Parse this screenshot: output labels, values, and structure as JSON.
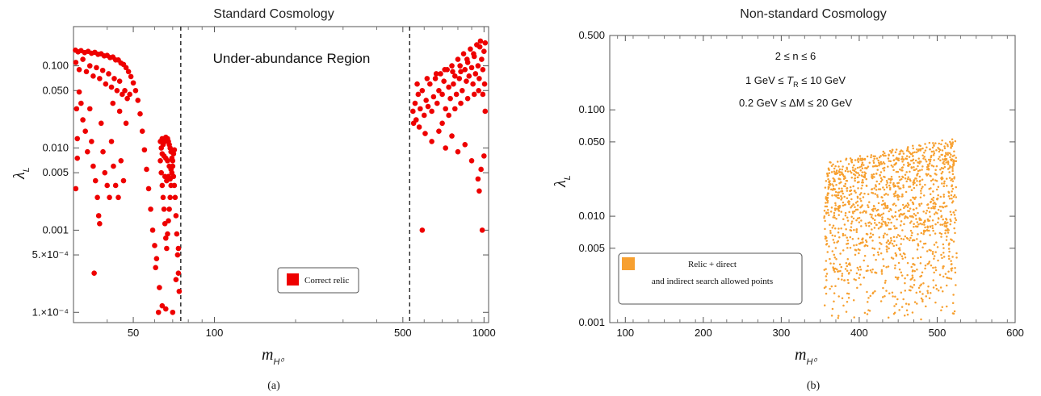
{
  "chart_data": [
    {
      "type": "scatter",
      "title": "Standard Cosmology",
      "xlabel": "m",
      "xlabel_sub": "H⁰",
      "ylabel": "λ",
      "ylabel_sub": "L",
      "xscale": "log",
      "yscale": "log",
      "xlim": [
        30,
        1040
      ],
      "ylim": [
        7.5e-05,
        0.3
      ],
      "xticks": [
        {
          "v": 50,
          "label": "50"
        },
        {
          "v": 100,
          "label": "100"
        },
        {
          "v": 500,
          "label": "500"
        },
        {
          "v": 1000,
          "label": "1000"
        }
      ],
      "yticks": [
        {
          "v": 0.1,
          "label": "0.100"
        },
        {
          "v": 0.05,
          "label": "0.050"
        },
        {
          "v": 0.01,
          "label": "0.010"
        },
        {
          "v": 0.005,
          "label": "0.005"
        },
        {
          "v": 0.001,
          "label": "0.001"
        },
        {
          "v": 0.0005,
          "label": "5.×10⁻⁴"
        },
        {
          "v": 0.0001,
          "label": "1.×10⁻⁴"
        }
      ],
      "vlines": [
        75,
        530
      ],
      "annotation": "Under-abundance Region",
      "legend": {
        "label": "Correct relic",
        "color": "#ee0000",
        "position": "bottom-center"
      },
      "caption": "(a)",
      "series": [
        {
          "name": "Correct relic",
          "color": "#ee0000",
          "points": [
            [
              30.5,
              0.155
            ],
            [
              31.2,
              0.148
            ],
            [
              32.0,
              0.153
            ],
            [
              33.0,
              0.145
            ],
            [
              34.0,
              0.15
            ],
            [
              35.0,
              0.142
            ],
            [
              36.0,
              0.146
            ],
            [
              37.0,
              0.138
            ],
            [
              38.0,
              0.14
            ],
            [
              39.0,
              0.132
            ],
            [
              40.0,
              0.134
            ],
            [
              41.0,
              0.126
            ],
            [
              42.0,
              0.128
            ],
            [
              43.0,
              0.118
            ],
            [
              44.0,
              0.118
            ],
            [
              45.0,
              0.108
            ],
            [
              46.0,
              0.104
            ],
            [
              47.0,
              0.095
            ],
            [
              48.0,
              0.085
            ],
            [
              49.0,
              0.074
            ],
            [
              50.0,
              0.062
            ],
            [
              51.0,
              0.05
            ],
            [
              52.0,
              0.038
            ],
            [
              53.0,
              0.026
            ],
            [
              54.0,
              0.016
            ],
            [
              55.0,
              0.0095
            ],
            [
              56.0,
              0.0055
            ],
            [
              57.0,
              0.0032
            ],
            [
              58.0,
              0.0018
            ],
            [
              59.0,
              0.001
            ],
            [
              60.0,
              0.00065
            ],
            [
              61.0,
              0.00045
            ],
            [
              30.6,
              0.11
            ],
            [
              31.5,
              0.09
            ],
            [
              32.5,
              0.12
            ],
            [
              33.5,
              0.085
            ],
            [
              34.5,
              0.1
            ],
            [
              35.5,
              0.075
            ],
            [
              36.5,
              0.095
            ],
            [
              37.5,
              0.07
            ],
            [
              38.5,
              0.088
            ],
            [
              39.5,
              0.06
            ],
            [
              40.5,
              0.08
            ],
            [
              41.5,
              0.055
            ],
            [
              42.5,
              0.07
            ],
            [
              43.5,
              0.05
            ],
            [
              44.5,
              0.065
            ],
            [
              45.5,
              0.045
            ],
            [
              46.5,
              0.05
            ],
            [
              47.5,
              0.04
            ],
            [
              48.5,
              0.045
            ],
            [
              30.8,
              0.03
            ],
            [
              31.0,
              0.013
            ],
            [
              31.0,
              0.0075
            ],
            [
              30.6,
              0.0032
            ],
            [
              31.5,
              0.048
            ],
            [
              32.0,
              0.035
            ],
            [
              32.5,
              0.022
            ],
            [
              33.2,
              0.016
            ],
            [
              33.8,
              0.009
            ],
            [
              34.5,
              0.03
            ],
            [
              35.0,
              0.012
            ],
            [
              35.5,
              0.006
            ],
            [
              36.2,
              0.004
            ],
            [
              36.8,
              0.0025
            ],
            [
              37.2,
              0.0015
            ],
            [
              37.5,
              0.0012
            ],
            [
              38.0,
              0.02
            ],
            [
              38.6,
              0.009
            ],
            [
              39.2,
              0.005
            ],
            [
              40.0,
              0.0035
            ],
            [
              40.8,
              0.0025
            ],
            [
              41.5,
              0.012
            ],
            [
              42.2,
              0.006
            ],
            [
              43.0,
              0.0035
            ],
            [
              44.0,
              0.0025
            ],
            [
              45.0,
              0.007
            ],
            [
              46.0,
              0.004
            ],
            [
              35.8,
              0.0003
            ],
            [
              42.0,
              0.035
            ],
            [
              44.5,
              0.028
            ],
            [
              47.0,
              0.02
            ],
            [
              63.0,
              0.012
            ],
            [
              63.5,
              0.01
            ],
            [
              64.0,
              0.013
            ],
            [
              64.5,
              0.011
            ],
            [
              65.0,
              0.0125
            ],
            [
              65.5,
              0.012
            ],
            [
              66.0,
              0.0135
            ],
            [
              66.5,
              0.0125
            ],
            [
              67.0,
              0.013
            ],
            [
              67.5,
              0.012
            ],
            [
              68.0,
              0.011
            ],
            [
              68.5,
              0.01
            ],
            [
              69.0,
              0.009
            ],
            [
              69.5,
              0.0075
            ],
            [
              70.0,
              0.006
            ],
            [
              70.5,
              0.0045
            ],
            [
              71.0,
              0.0035
            ],
            [
              71.5,
              0.0025
            ],
            [
              72.0,
              0.0015
            ],
            [
              72.5,
              0.0009
            ],
            [
              73.0,
              0.0005
            ],
            [
              73.5,
              0.0003
            ],
            [
              74.0,
              0.00018
            ],
            [
              63.0,
              0.007
            ],
            [
              63.5,
              0.005
            ],
            [
              64.0,
              0.0035
            ],
            [
              64.5,
              0.0025
            ],
            [
              65.0,
              0.0018
            ],
            [
              65.5,
              0.0012
            ],
            [
              66.0,
              0.0008
            ],
            [
              66.5,
              0.0006
            ],
            [
              67.0,
              0.0009
            ],
            [
              67.5,
              0.0013
            ],
            [
              68.0,
              0.0018
            ],
            [
              68.5,
              0.0025
            ],
            [
              69.0,
              0.0035
            ],
            [
              69.5,
              0.005
            ],
            [
              70.0,
              0.007
            ],
            [
              70.5,
              0.0085
            ],
            [
              71.0,
              0.0095
            ],
            [
              64.0,
              0.0085
            ],
            [
              65.0,
              0.008
            ],
            [
              66.0,
              0.0075
            ],
            [
              67.0,
              0.007
            ],
            [
              68.0,
              0.006
            ],
            [
              69.0,
              0.0055
            ],
            [
              66.5,
              0.004
            ],
            [
              67.5,
              0.0045
            ],
            [
              68.5,
              0.0042
            ],
            [
              65.5,
              0.0045
            ],
            [
              62.0,
              0.0001
            ],
            [
              64.0,
              0.00012
            ],
            [
              66.0,
              0.00011
            ],
            [
              70.0,
              0.0001
            ],
            [
              72.0,
              0.00025
            ],
            [
              73.5,
              0.0006
            ],
            [
              60.5,
              0.00035
            ],
            [
              62.5,
              0.0002
            ],
            [
              545,
              0.028
            ],
            [
              555,
              0.035
            ],
            [
              560,
              0.022
            ],
            [
              570,
              0.045
            ],
            [
              580,
              0.03
            ],
            [
              590,
              0.05
            ],
            [
              600,
              0.025
            ],
            [
              610,
              0.038
            ],
            [
              620,
              0.032
            ],
            [
              630,
              0.06
            ],
            [
              640,
              0.028
            ],
            [
              650,
              0.042
            ],
            [
              660,
              0.07
            ],
            [
              670,
              0.035
            ],
            [
              680,
              0.05
            ],
            [
              690,
              0.08
            ],
            [
              700,
              0.045
            ],
            [
              710,
              0.065
            ],
            [
              720,
              0.03
            ],
            [
              730,
              0.09
            ],
            [
              740,
              0.055
            ],
            [
              750,
              0.04
            ],
            [
              760,
              0.1
            ],
            [
              770,
              0.06
            ],
            [
              780,
              0.075
            ],
            [
              790,
              0.045
            ],
            [
              800,
              0.12
            ],
            [
              810,
              0.07
            ],
            [
              820,
              0.085
            ],
            [
              830,
              0.05
            ],
            [
              840,
              0.14
            ],
            [
              850,
              0.09
            ],
            [
              860,
              0.065
            ],
            [
              870,
              0.11
            ],
            [
              880,
              0.075
            ],
            [
              890,
              0.16
            ],
            [
              900,
              0.095
            ],
            [
              910,
              0.06
            ],
            [
              920,
              0.13
            ],
            [
              930,
              0.08
            ],
            [
              940,
              0.18
            ],
            [
              950,
              0.1
            ],
            [
              960,
              0.07
            ],
            [
              970,
              0.2
            ],
            [
              980,
              0.12
            ],
            [
              990,
              0.09
            ],
            [
              1000,
              0.15
            ],
            [
              548,
              0.02
            ],
            [
              575,
              0.018
            ],
            [
              605,
              0.015
            ],
            [
              640,
              0.012
            ],
            [
              680,
              0.016
            ],
            [
              720,
              0.01
            ],
            [
              760,
              0.014
            ],
            [
              800,
              0.009
            ],
            [
              850,
              0.011
            ],
            [
              900,
              0.007
            ],
            [
              950,
              0.0042
            ],
            [
              960,
              0.003
            ],
            [
              975,
              0.0055
            ],
            [
              1000,
              0.008
            ],
            [
              1010,
              0.028
            ],
            [
              990,
              0.045
            ],
            [
              1005,
              0.06
            ],
            [
              590,
              0.001
            ],
            [
              985,
              0.001
            ],
            [
              700,
              0.02
            ],
            [
              740,
              0.025
            ],
            [
              780,
              0.03
            ],
            [
              820,
              0.035
            ],
            [
              870,
              0.04
            ],
            [
              920,
              0.045
            ],
            [
              955,
              0.05
            ],
            [
              565,
              0.06
            ],
            [
              615,
              0.07
            ],
            [
              665,
              0.08
            ],
            [
              715,
              0.09
            ],
            [
              765,
              0.085
            ],
            [
              815,
              0.1
            ],
            [
              865,
              0.12
            ],
            [
              915,
              0.14
            ],
            [
              965,
              0.17
            ],
            [
              1010,
              0.19
            ]
          ]
        }
      ]
    },
    {
      "type": "scatter",
      "title": "Non-standard Cosmology",
      "xlabel": "m",
      "xlabel_sub": "H⁰",
      "ylabel": "λ",
      "ylabel_sub": "L",
      "xscale": "linear",
      "yscale": "log",
      "xlim": [
        80,
        600
      ],
      "ylim": [
        0.001,
        0.5
      ],
      "xticks": [
        {
          "v": 100,
          "label": "100"
        },
        {
          "v": 200,
          "label": "200"
        },
        {
          "v": 300,
          "label": "300"
        },
        {
          "v": 400,
          "label": "400"
        },
        {
          "v": 500,
          "label": "500"
        },
        {
          "v": 600,
          "label": "600"
        }
      ],
      "yticks": [
        {
          "v": 0.5,
          "label": "0.500"
        },
        {
          "v": 0.1,
          "label": "0.100"
        },
        {
          "v": 0.05,
          "label": "0.050"
        },
        {
          "v": 0.01,
          "label": "0.010"
        },
        {
          "v": 0.005,
          "label": "0.005"
        },
        {
          "v": 0.001,
          "label": "0.001"
        }
      ],
      "annotations": [
        "2 ≤ n ≤ 6",
        "1 GeV ≤ T",
        "0.2 GeV ≤ ΔM ≤ 20 GeV"
      ],
      "annotation_tr": {
        "pre": "1 GeV ≤ ",
        "var": "T",
        "sub": "R",
        "post": " ≤ 10 GeV"
      },
      "legend": {
        "line1": "Relic + direct",
        "line2": "and indirect search allowed points",
        "color": "#f7a030",
        "position": "bottom-left"
      },
      "caption": "(b)",
      "region": {
        "xmin": 355,
        "xmax": 525,
        "ymin": 0.001,
        "ytop_left": 0.032,
        "ytop_right": 0.055,
        "count": 1400,
        "color": "#f7a030"
      }
    }
  ]
}
